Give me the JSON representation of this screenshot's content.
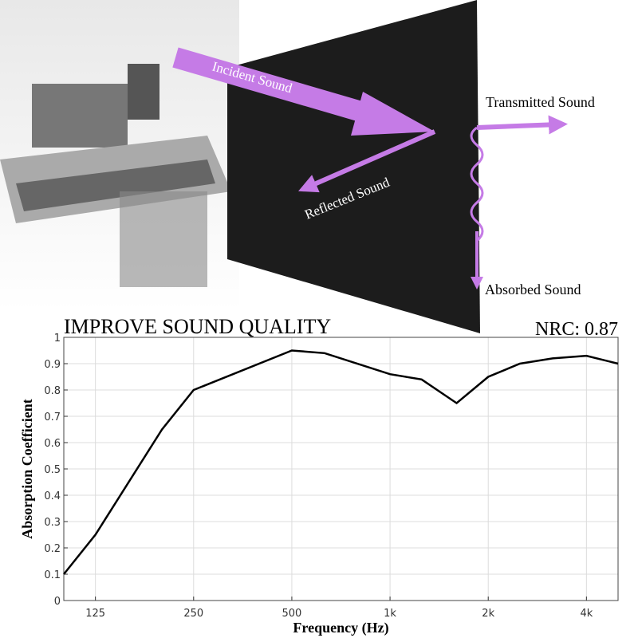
{
  "illustration": {
    "incident": "Incident Sound",
    "transmitted": "Transmitted Sound",
    "reflected": "Reflected Sound",
    "absorbed": "Absorbed Sound"
  },
  "chart_data": {
    "type": "line",
    "title": "IMPROVE SOUND QUALITY",
    "annotation": "NRC: 0.87",
    "x_label": "Frequency (Hz)",
    "y_label": "Absorption Coefficient",
    "x": [
      100,
      125,
      200,
      250,
      500,
      630,
      1000,
      1250,
      1600,
      2000,
      2500,
      3150,
      4000,
      5000
    ],
    "values": [
      0.1,
      0.25,
      0.65,
      0.8,
      0.95,
      0.94,
      0.86,
      0.84,
      0.75,
      0.85,
      0.9,
      0.92,
      0.93,
      0.9
    ],
    "color": "#000000",
    "x_log": true,
    "grid": true,
    "xlim": [
      100,
      5000
    ],
    "xticks": [
      125,
      250,
      500,
      {
        "value": 1000,
        "label": "1k"
      },
      {
        "value": 2000,
        "label": "2k"
      },
      {
        "value": 4000,
        "label": "4k"
      }
    ],
    "ylim": [
      0,
      1
    ],
    "yticks": [
      0,
      0.1,
      0.2,
      0.3,
      0.4,
      0.5,
      0.6,
      0.7,
      0.8,
      0.9,
      1
    ]
  }
}
